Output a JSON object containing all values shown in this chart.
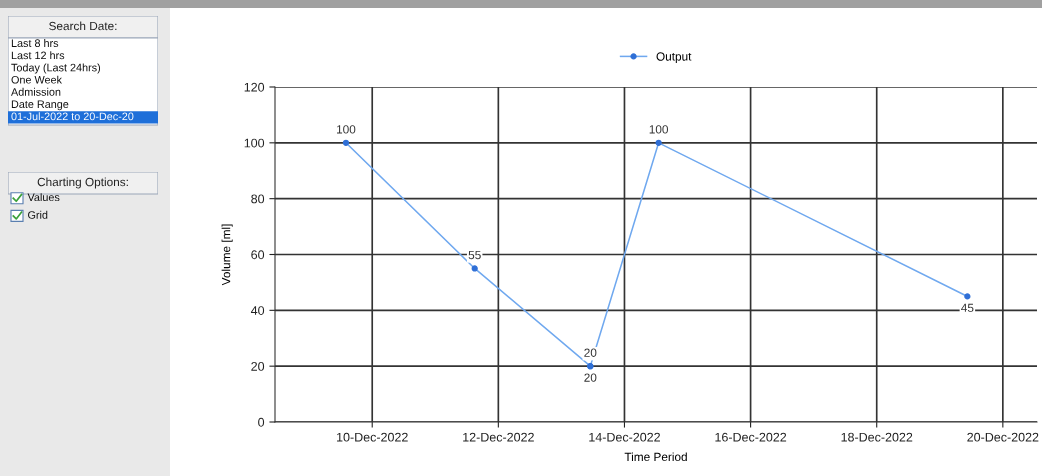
{
  "chart_data": [
    {
      "type": "other",
      "title": "Search Date:",
      "annotations": [
        "Last 8 hrs",
        "Last 12 hrs",
        "Today (Last 24hrs)",
        "One Week",
        "Admission",
        "Date Range",
        "01-Jul-2022 to 20-Dec-20"
      ]
    },
    {
      "type": "other",
      "title": "Charting Options:",
      "annotations": [
        "Values",
        "Grid"
      ]
    },
    {
      "type": "line",
      "xlabel": "Time Period",
      "ylabel": "Volume [ml]",
      "x": [
        "2022-12-09T14:00",
        "2022-12-11T15:00",
        "2022-12-13T11:00",
        "2022-12-13T11:00",
        "2022-12-14T13:00",
        "2022-12-19T10:30"
      ],
      "series": [
        {
          "name": "Output",
          "color": "#6fa8ef",
          "values": [
            100,
            55,
            20,
            20,
            100,
            45
          ]
        }
      ],
      "xlim": [
        "2022-12-08T11:00",
        "2022-12-20T13:00"
      ],
      "xticks": [
        {
          "value": "2022-12-10",
          "label": "10-Dec-2022"
        },
        {
          "value": "2022-12-12",
          "label": "12-Dec-2022"
        },
        {
          "value": "2022-12-14",
          "label": "14-Dec-2022"
        },
        {
          "value": "2022-12-16",
          "label": "16-Dec-2022"
        },
        {
          "value": "2022-12-18",
          "label": "18-Dec-2022"
        },
        {
          "value": "2022-12-20",
          "label": "20-Dec-2022"
        }
      ],
      "ylim": [
        0,
        120
      ],
      "yticks": [
        0,
        20,
        40,
        60,
        80,
        100,
        120
      ],
      "grid": true,
      "legend": "top",
      "marker": "circle",
      "line_style": "solid",
      "data_labels": true
    }
  ]
}
